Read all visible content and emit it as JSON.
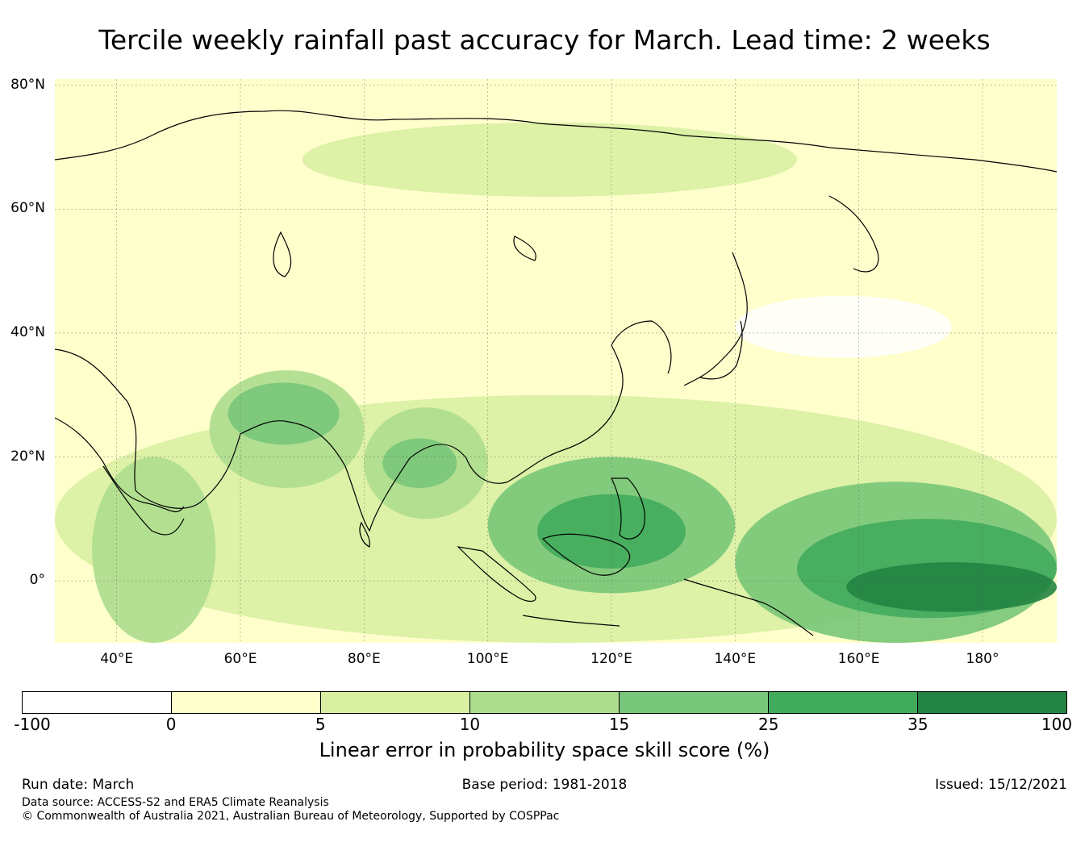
{
  "title": "Tercile weekly rainfall past accuracy for March. Lead time: 2 weeks",
  "map": {
    "lon_range": [
      30,
      192
    ],
    "lat_range": [
      -10,
      81
    ],
    "lat_labels": [
      {
        "text": "80°N",
        "lat": 80
      },
      {
        "text": "60°N",
        "lat": 60
      },
      {
        "text": "40°N",
        "lat": 40
      },
      {
        "text": "20°N",
        "lat": 20
      },
      {
        "text": "0°",
        "lat": 0
      }
    ],
    "lon_labels": [
      {
        "text": "40°E",
        "lon": 40
      },
      {
        "text": "60°E",
        "lon": 60
      },
      {
        "text": "80°E",
        "lon": 80
      },
      {
        "text": "100°E",
        "lon": 100
      },
      {
        "text": "120°E",
        "lon": 120
      },
      {
        "text": "140°E",
        "lon": 140
      },
      {
        "text": "160°E",
        "lon": 160
      },
      {
        "text": "180°",
        "lon": 180
      }
    ],
    "skill_regions": [
      {
        "name": "Arabian Sea / Iran band",
        "lon": [
          55,
          80
        ],
        "lat": [
          15,
          34
        ],
        "level": 3
      },
      {
        "name": "Persian Gulf core",
        "lon": [
          58,
          76
        ],
        "lat": [
          22,
          32
        ],
        "level": 4
      },
      {
        "name": "Horn of Africa",
        "lon": [
          36,
          56
        ],
        "lat": [
          -10,
          20
        ],
        "level": 3
      },
      {
        "name": "Bay of Bengal",
        "lon": [
          80,
          100
        ],
        "lat": [
          10,
          28
        ],
        "level": 3
      },
      {
        "name": "Bay of Bengal core",
        "lon": [
          83,
          95
        ],
        "lat": [
          15,
          23
        ],
        "level": 4
      },
      {
        "name": "South China Sea / Philippines",
        "lon": [
          100,
          140
        ],
        "lat": [
          -2,
          20
        ],
        "level": 4
      },
      {
        "name": "Borneo / Philippines core",
        "lon": [
          108,
          132
        ],
        "lat": [
          2,
          14
        ],
        "level": 5
      },
      {
        "name": "Equatorial Pacific",
        "lon": [
          140,
          192
        ],
        "lat": [
          -10,
          16
        ],
        "level": 4
      },
      {
        "name": "Equatorial Pacific strong",
        "lon": [
          150,
          192
        ],
        "lat": [
          -6,
          10
        ],
        "level": 5
      },
      {
        "name": "Equatorial Pacific max",
        "lon": [
          158,
          192
        ],
        "lat": [
          -5,
          3
        ],
        "level": 6
      },
      {
        "name": "Tropical belt",
        "lon": [
          30,
          192
        ],
        "lat": [
          -10,
          30
        ],
        "level": 2
      },
      {
        "name": "Siberia band",
        "lon": [
          70,
          150
        ],
        "lat": [
          62,
          74
        ],
        "level": 2
      },
      {
        "name": "Pacific NE low skill",
        "lon": [
          140,
          175
        ],
        "lat": [
          36,
          46
        ],
        "level": 0
      }
    ]
  },
  "colorbar": {
    "colors": [
      "#ffffff",
      "#ffffcc",
      "#d9f0a3",
      "#addd8e",
      "#78c679",
      "#41ab5d",
      "#238443"
    ],
    "ticks": [
      "-100",
      "0",
      "5",
      "10",
      "15",
      "25",
      "35",
      "100"
    ],
    "label": "Linear error in probability space skill score (%)"
  },
  "footer": {
    "run_date": "Run date: March",
    "base_period": "Base period: 1981-2018",
    "issued": "Issued: 15/12/2021",
    "data_source": "Data source: ACCESS-S2 and ERA5 Climate Reanalysis",
    "copyright": "© Commonwealth of Australia 2021, Australian Bureau of Meteorology, Supported by COSPPac"
  }
}
